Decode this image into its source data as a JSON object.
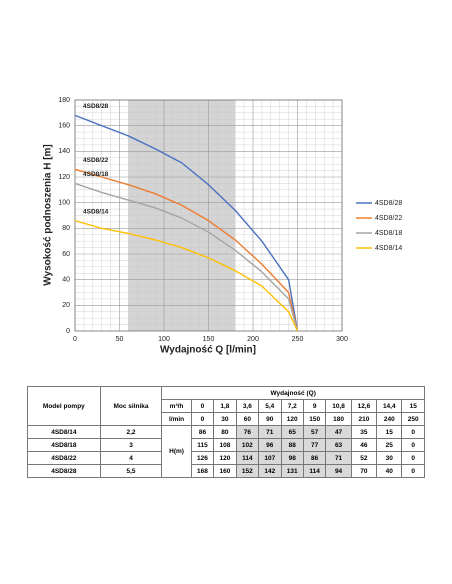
{
  "chart_data": {
    "type": "line",
    "x_label": "Wydajność Q [l/min]",
    "y_label": "Wysokość podnoszenia H [m]",
    "x": [
      0,
      30,
      60,
      90,
      120,
      150,
      180,
      210,
      240,
      250
    ],
    "series": [
      {
        "name": "4SD8/28",
        "color": "#4a72c0",
        "values": [
          168,
          160,
          152,
          142,
          131,
          114,
          94,
          70,
          40,
          0
        ]
      },
      {
        "name": "4SD8/22",
        "color": "#ed7d31",
        "values": [
          126,
          120,
          114,
          107,
          98,
          86,
          71,
          52,
          30,
          0
        ]
      },
      {
        "name": "4SD8/18",
        "color": "#a5a5a5",
        "values": [
          115,
          108,
          102,
          96,
          88,
          77,
          63,
          46,
          25,
          0
        ]
      },
      {
        "name": "4SD8/14",
        "color": "#ffc000",
        "values": [
          86,
          80,
          76,
          71,
          65,
          57,
          47,
          35,
          15,
          0
        ]
      }
    ],
    "xlim": [
      0,
      300
    ],
    "xticks": [
      0,
      50,
      100,
      150,
      200,
      250,
      300
    ],
    "ylim": [
      0,
      180
    ],
    "yticks": [
      0,
      20,
      40,
      60,
      80,
      100,
      120,
      140,
      160,
      180
    ],
    "grid": true,
    "minor_grid": true,
    "highlight_x": [
      60,
      180
    ],
    "legend": "right"
  },
  "table": {
    "header": {
      "model": "Model pompy",
      "power": "Moc silnika",
      "flow": "Wydajność (Q)",
      "unit_m3h": "m³/h",
      "unit_lmin": "l/min",
      "head": "H(m)"
    },
    "m3h": [
      "0",
      "1,8",
      "3,6",
      "5,4",
      "7,2",
      "9",
      "10,8",
      "12,6",
      "14,4",
      "15"
    ],
    "lmin": [
      "0",
      "30",
      "60",
      "90",
      "120",
      "150",
      "180",
      "210",
      "240",
      "250"
    ],
    "rows": [
      {
        "model": "4SD8/14",
        "power": "2,2",
        "values": [
          "86",
          "80",
          "76",
          "71",
          "65",
          "57",
          "47",
          "35",
          "15",
          "0"
        ]
      },
      {
        "model": "4SD8/18",
        "power": "3",
        "values": [
          "115",
          "108",
          "102",
          "96",
          "88",
          "77",
          "63",
          "46",
          "25",
          "0"
        ]
      },
      {
        "model": "4SD8/22",
        "power": "4",
        "values": [
          "126",
          "120",
          "114",
          "107",
          "98",
          "86",
          "71",
          "52",
          "30",
          "0"
        ]
      },
      {
        "model": "4SD8/28",
        "power": "5,5",
        "values": [
          "168",
          "160",
          "152",
          "142",
          "131",
          "114",
          "94",
          "70",
          "40",
          "0"
        ]
      }
    ]
  }
}
